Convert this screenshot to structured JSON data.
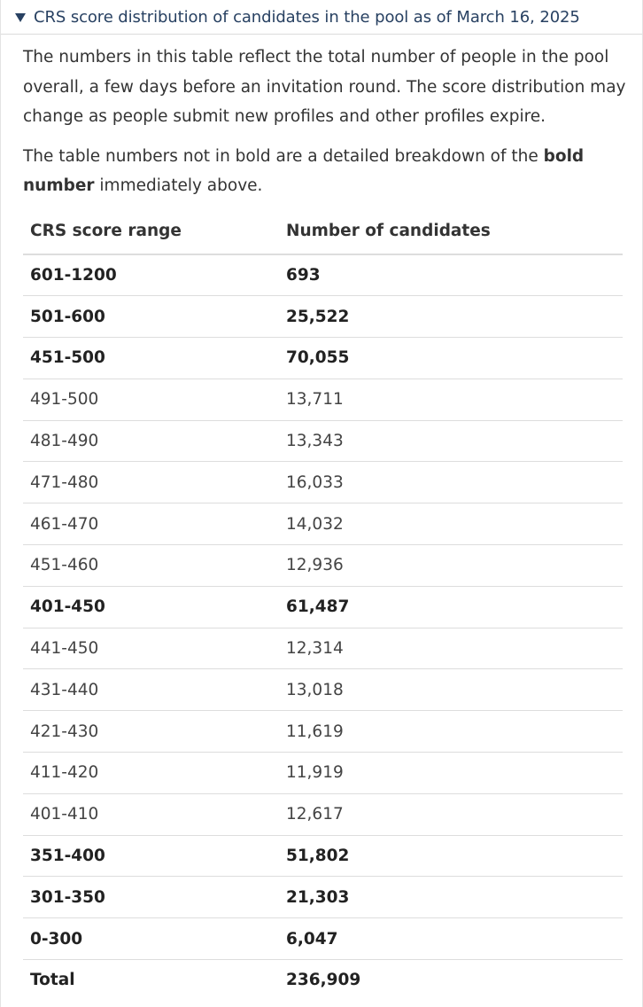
{
  "summary": {
    "title": "CRS score distribution of candidates in the pool as of March 16, 2025",
    "icon": "expanded-triangle-icon"
  },
  "paragraphs": {
    "p1": "The numbers in this table reflect the total number of people in the pool overall, a few days before an invitation round. The score distribution may change as people submit new profiles and other profiles expire.",
    "p2_before": "The table numbers not in bold are a detailed breakdown of the ",
    "p2_bold": "bold number",
    "p2_after": " immediately above."
  },
  "table": {
    "headers": [
      "CRS score range",
      "Number of candidates"
    ],
    "rows": [
      {
        "range": "601-1200",
        "count": "693",
        "bold": true
      },
      {
        "range": "501-600",
        "count": "25,522",
        "bold": true
      },
      {
        "range": "451-500",
        "count": "70,055",
        "bold": true
      },
      {
        "range": "491-500",
        "count": "13,711",
        "bold": false
      },
      {
        "range": "481-490",
        "count": "13,343",
        "bold": false
      },
      {
        "range": "471-480",
        "count": "16,033",
        "bold": false
      },
      {
        "range": "461-470",
        "count": "14,032",
        "bold": false
      },
      {
        "range": "451-460",
        "count": "12,936",
        "bold": false
      },
      {
        "range": "401-450",
        "count": "61,487",
        "bold": true
      },
      {
        "range": "441-450",
        "count": "12,314",
        "bold": false
      },
      {
        "range": "431-440",
        "count": "13,018",
        "bold": false
      },
      {
        "range": "421-430",
        "count": "11,619",
        "bold": false
      },
      {
        "range": "411-420",
        "count": "11,919",
        "bold": false
      },
      {
        "range": "401-410",
        "count": "12,617",
        "bold": false
      },
      {
        "range": "351-400",
        "count": "51,802",
        "bold": true
      },
      {
        "range": "301-350",
        "count": "21,303",
        "bold": true
      },
      {
        "range": "0-300",
        "count": "6,047",
        "bold": true
      },
      {
        "range": "Total",
        "count": "236,909",
        "bold": true
      }
    ]
  },
  "colors": {
    "summary_text": "#284162",
    "body_text": "#333333",
    "row_border": "#dddddd"
  }
}
